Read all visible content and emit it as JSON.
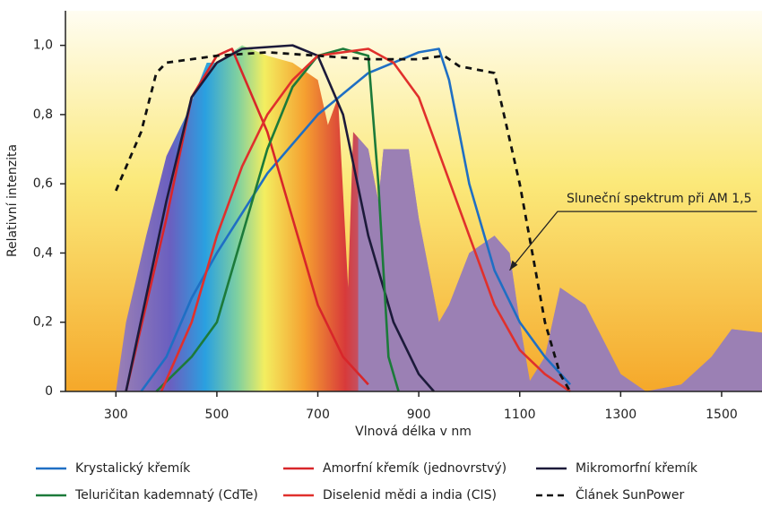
{
  "chart_data": {
    "type": "line",
    "x_label": "Vlnová délka v nm",
    "y_label": "Relativní intenzita",
    "xlim": [
      200,
      1580
    ],
    "ylim": [
      0,
      1.1
    ],
    "xticks": [
      300,
      500,
      700,
      900,
      1100,
      1300,
      1500
    ],
    "yticks": [
      0,
      {
        "value": 0.2,
        "label": "0,2"
      },
      {
        "value": 0.4,
        "label": "0,4"
      },
      {
        "value": 0.6,
        "label": "0,6"
      },
      {
        "value": 0.8,
        "label": "0,8"
      },
      {
        "value": 1.0,
        "label": "1,0"
      }
    ],
    "spectrum": {
      "annotation": "Sluneční spektrum při AM 1,5",
      "color": "#9b80b4",
      "x": [
        300,
        320,
        360,
        400,
        440,
        480,
        500,
        550,
        600,
        650,
        700,
        720,
        740,
        760,
        770,
        800,
        820,
        830,
        880,
        900,
        940,
        960,
        1000,
        1050,
        1080,
        1100,
        1120,
        1150,
        1180,
        1230,
        1300,
        1350,
        1420,
        1480,
        1520,
        1580
      ],
      "values": [
        0,
        0.2,
        0.45,
        0.68,
        0.8,
        0.95,
        0.95,
        1.0,
        0.97,
        0.95,
        0.9,
        0.77,
        0.85,
        0.3,
        0.75,
        0.7,
        0.55,
        0.7,
        0.7,
        0.5,
        0.2,
        0.25,
        0.4,
        0.45,
        0.4,
        0.2,
        0.03,
        0.1,
        0.3,
        0.25,
        0.05,
        0,
        0.02,
        0.1,
        0.18,
        0.17
      ]
    },
    "series": [
      {
        "name": "Krystalický křemík",
        "color": "#1f6fc4",
        "line_style": "solid",
        "x": [
          350,
          400,
          450,
          500,
          600,
          700,
          800,
          900,
          940,
          960,
          1000,
          1050,
          1100,
          1150,
          1200
        ],
        "values": [
          0,
          0.1,
          0.27,
          0.4,
          0.63,
          0.8,
          0.92,
          0.98,
          0.99,
          0.9,
          0.6,
          0.35,
          0.2,
          0.1,
          0.02
        ]
      },
      {
        "name": "Amorfní křemík (jednovrstvý)",
        "color": "#d8262a",
        "line_style": "solid",
        "x": [
          320,
          400,
          450,
          500,
          530,
          600,
          650,
          700,
          750,
          800
        ],
        "values": [
          0,
          0.5,
          0.85,
          0.97,
          0.99,
          0.75,
          0.5,
          0.25,
          0.1,
          0.02
        ]
      },
      {
        "name": "Mikromorfní křemík",
        "color": "#1c1a3a",
        "line_style": "solid",
        "x": [
          320,
          400,
          450,
          500,
          550,
          650,
          700,
          750,
          800,
          850,
          900,
          930
        ],
        "values": [
          0,
          0.55,
          0.85,
          0.95,
          0.99,
          1.0,
          0.97,
          0.8,
          0.45,
          0.2,
          0.05,
          0
        ]
      },
      {
        "name": "Teluričitan kademnatý (CdTe)",
        "color": "#1c7a3a",
        "line_style": "solid",
        "x": [
          380,
          450,
          500,
          550,
          600,
          650,
          700,
          750,
          800,
          820,
          840,
          860
        ],
        "values": [
          0,
          0.1,
          0.2,
          0.45,
          0.7,
          0.88,
          0.97,
          0.99,
          0.97,
          0.6,
          0.1,
          0
        ]
      },
      {
        "name": "Diselenid mědi a india (CIS)",
        "color": "#e0302c",
        "line_style": "solid",
        "x": [
          390,
          450,
          500,
          550,
          600,
          650,
          700,
          800,
          850,
          900,
          950,
          1000,
          1050,
          1100,
          1150,
          1200
        ],
        "values": [
          0,
          0.2,
          0.45,
          0.65,
          0.8,
          0.9,
          0.97,
          0.99,
          0.95,
          0.85,
          0.65,
          0.45,
          0.25,
          0.12,
          0.05,
          0
        ]
      },
      {
        "name": "Článek SunPower",
        "color": "#111111",
        "line_style": "dashed",
        "x": [
          300,
          350,
          380,
          400,
          500,
          600,
          700,
          800,
          900,
          950,
          980,
          1050,
          1100,
          1150,
          1180,
          1200
        ],
        "values": [
          0.58,
          0.75,
          0.92,
          0.95,
          0.97,
          0.98,
          0.97,
          0.96,
          0.96,
          0.97,
          0.94,
          0.92,
          0.6,
          0.2,
          0.05,
          0
        ]
      }
    ]
  }
}
